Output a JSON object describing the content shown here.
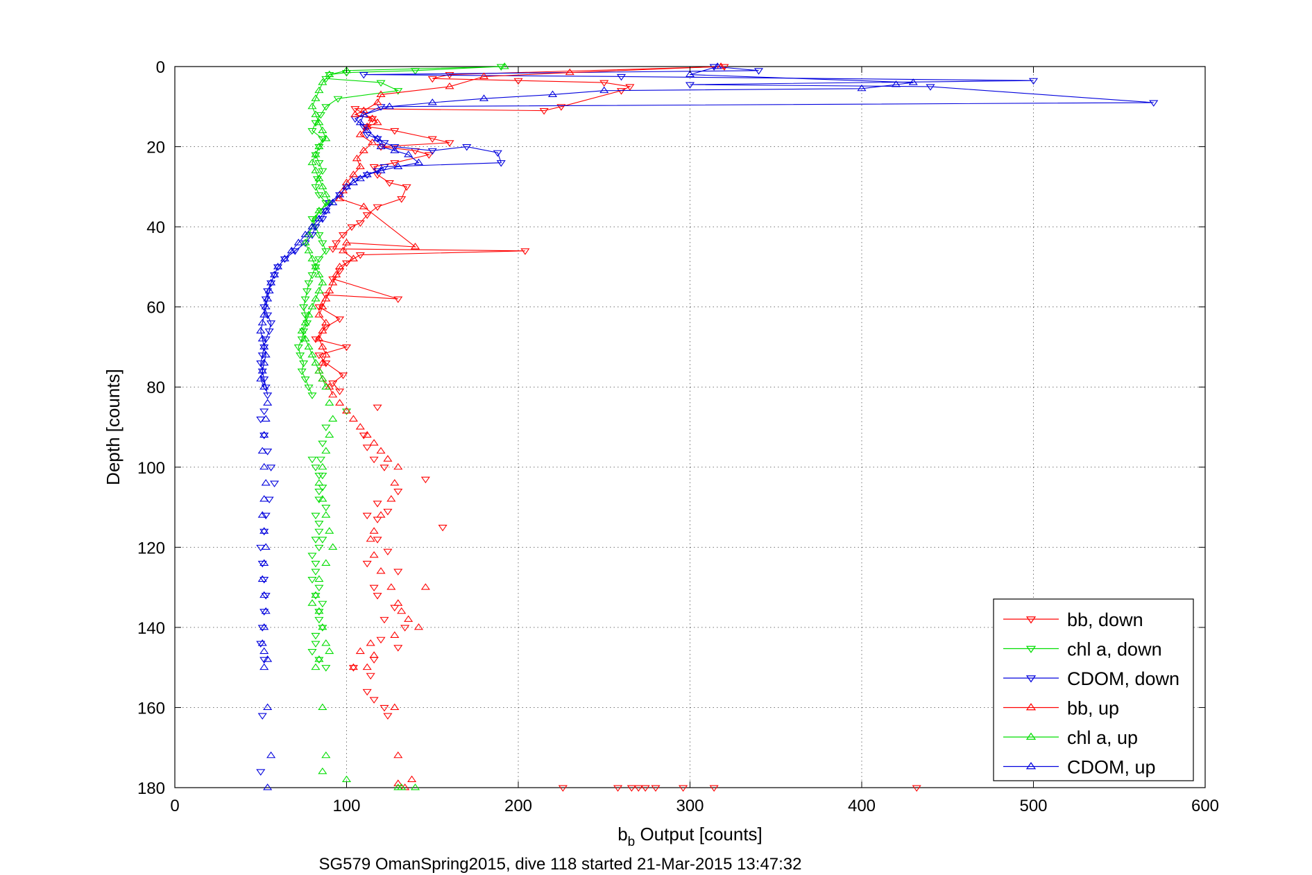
{
  "chart_data": {
    "type": "line",
    "xlabel_main": "b",
    "xlabel_sub": "b",
    "xlabel_rest": " Output [counts]",
    "ylabel": "Depth [counts]",
    "caption": "SG579 OmanSpring2015, dive 118 started 21-Mar-2015 13:47:32",
    "xlim": [
      0,
      600
    ],
    "ylim": [
      0,
      180
    ],
    "y_reversed": true,
    "grid": true,
    "legend_position": "bottom-right",
    "xticks": [
      "0",
      "100",
      "200",
      "300",
      "400",
      "500",
      "600"
    ],
    "yticks": [
      "0",
      "20",
      "40",
      "60",
      "80",
      "100",
      "120",
      "140",
      "160",
      "180"
    ],
    "series": [
      {
        "name": "bb, down",
        "color": "#ff0000",
        "marker": "triangle-down",
        "connected": true,
        "x": [
          320,
          160,
          150,
          200,
          250,
          265,
          260,
          225,
          215,
          105,
          115,
          112,
          128,
          150,
          160,
          120,
          140,
          148,
          128,
          116,
          118,
          125,
          135,
          132,
          118,
          112,
          108,
          103,
          98,
          94,
          92,
          204,
          108,
          100,
          96,
          92,
          130,
          88,
          84,
          96,
          88,
          82,
          100,
          84,
          88,
          98,
          92,
          96,
          118,
          110,
          112,
          116,
          122,
          146,
          130,
          118,
          124,
          118,
          112,
          156,
          118,
          124,
          112,
          130,
          116,
          118,
          128,
          122,
          134,
          120,
          130,
          116,
          104,
          114,
          112,
          116,
          122,
          124,
          226,
          258,
          266,
          270,
          274,
          280,
          296,
          314,
          432
        ],
        "y": [
          0,
          2,
          3,
          3.5,
          4,
          5,
          6,
          10,
          11,
          10.5,
          13,
          15,
          16,
          18,
          19,
          20,
          21,
          22,
          24,
          25,
          27,
          29,
          30,
          33,
          35,
          37,
          39,
          40,
          42,
          44,
          45.5,
          46,
          47,
          49,
          51,
          53,
          58,
          57,
          60,
          63,
          65,
          68,
          70,
          72,
          74,
          77,
          79,
          81,
          85,
          92,
          95,
          98,
          100,
          103,
          106,
          109,
          111,
          113,
          112,
          115,
          118,
          121,
          124,
          126,
          130,
          132,
          135,
          138,
          140,
          143,
          145,
          148,
          150,
          152,
          156,
          158,
          160,
          162,
          180,
          180,
          180,
          180,
          180,
          180,
          180,
          180,
          180
        ]
      },
      {
        "name": "chl a, down",
        "color": "#00dd00",
        "marker": "triangle-down",
        "connected": true,
        "x": [
          190,
          140,
          100,
          90,
          88,
          120,
          130,
          95,
          88,
          85,
          82,
          80,
          86,
          84,
          82,
          84,
          86,
          83,
          82,
          84,
          88,
          85,
          80,
          82,
          84,
          86,
          88,
          84,
          82,
          80,
          78,
          77,
          76,
          75,
          76,
          77,
          75,
          74,
          72,
          73,
          75,
          74,
          76,
          78,
          80,
          100,
          88,
          86,
          85,
          84,
          86,
          84,
          82,
          84,
          86,
          84,
          82,
          80,
          82,
          84,
          86,
          82,
          84,
          88,
          80,
          82,
          84,
          86,
          84,
          82,
          80,
          82,
          84,
          88,
          84,
          86,
          82,
          80
        ],
        "y": [
          0,
          1,
          1.5,
          2,
          3,
          4,
          6,
          8,
          10,
          12,
          14,
          16,
          18,
          20,
          22,
          24,
          26,
          28,
          30,
          32,
          34,
          36,
          38,
          40,
          42,
          44,
          46,
          48,
          50,
          52,
          54,
          56,
          58,
          60,
          62,
          64,
          66,
          68,
          70,
          72,
          74,
          76,
          78,
          80,
          82,
          86,
          90,
          94,
          98,
          102,
          105,
          108,
          112,
          116,
          118,
          120,
          124,
          128,
          132,
          136,
          140,
          144,
          148,
          150,
          146,
          142,
          138,
          134,
          130,
          126,
          122,
          118,
          114,
          110,
          106,
          102,
          100,
          98
        ]
      },
      {
        "name": "CDOM, down",
        "color": "#0000dd",
        "marker": "triangle-down",
        "connected": true,
        "x": [
          314,
          340,
          110,
          260,
          500,
          300,
          440,
          570,
          120,
          105,
          110,
          112,
          118,
          122,
          128,
          150,
          170,
          188,
          190,
          122,
          118,
          112,
          105,
          100,
          96,
          90,
          88,
          86,
          82,
          80,
          76,
          70,
          64,
          60,
          58,
          56,
          54,
          53,
          52,
          54,
          56,
          55,
          53,
          52,
          51,
          50,
          51,
          52,
          53,
          54,
          52,
          50,
          52,
          54,
          56,
          58,
          55,
          53,
          52,
          50,
          51,
          52,
          53,
          52,
          51,
          50,
          52,
          51,
          50
        ],
        "y": [
          0,
          1,
          2,
          2.5,
          3.5,
          4.5,
          5,
          9,
          10,
          13,
          15,
          17,
          18,
          19,
          20,
          21,
          20,
          21.5,
          24,
          25,
          26,
          27,
          28,
          30,
          32,
          34,
          36,
          38,
          40,
          42,
          44,
          46,
          48,
          50,
          52,
          54,
          56,
          58,
          60,
          62,
          64,
          66,
          68,
          70,
          72,
          74,
          76,
          78,
          80,
          82,
          86,
          88,
          92,
          96,
          100,
          104,
          108,
          112,
          116,
          120,
          124,
          128,
          132,
          136,
          140,
          144,
          148,
          162,
          176
        ]
      },
      {
        "name": "bb, up",
        "color": "#ff0000",
        "marker": "triangle-up",
        "connected": true,
        "x": [
          318,
          230,
          180,
          160,
          120,
          118,
          110,
          105,
          115,
          118,
          112,
          108,
          115,
          110,
          106,
          108,
          104,
          100,
          98,
          96,
          110,
          140,
          100,
          98,
          104,
          96,
          94,
          92,
          90,
          88,
          86,
          84,
          88,
          86,
          84,
          86,
          88,
          86,
          84,
          86,
          90,
          92,
          96,
          100,
          104,
          108,
          112,
          116,
          120,
          124,
          130,
          128,
          126,
          120,
          116,
          114,
          116,
          120,
          126,
          130,
          132,
          136,
          146,
          142,
          128,
          114,
          108,
          104,
          112,
          116,
          128,
          130,
          138,
          134,
          130
        ],
        "y": [
          0,
          1.5,
          2.5,
          5,
          7,
          9,
          11,
          12,
          13,
          14,
          15,
          17,
          19,
          21,
          23,
          25,
          27,
          29,
          31,
          33,
          35,
          45,
          44,
          46,
          48,
          50,
          52,
          54,
          56,
          58,
          60,
          62,
          64,
          66,
          68,
          70,
          72,
          74,
          76,
          78,
          80,
          82,
          84,
          86,
          88,
          90,
          92,
          94,
          96,
          98,
          100,
          104,
          108,
          112,
          116,
          118,
          122,
          126,
          130,
          134,
          136,
          138,
          130,
          140,
          142,
          144,
          146,
          150,
          150,
          147,
          160,
          172,
          178,
          180,
          179
        ]
      },
      {
        "name": "chl a, up",
        "color": "#00dd00",
        "marker": "triangle-up",
        "connected": true,
        "x": [
          192,
          100,
          90,
          86,
          84,
          82,
          80,
          82,
          84,
          86,
          88,
          84,
          82,
          80,
          82,
          84,
          86,
          88,
          90,
          84,
          82,
          80,
          78,
          76,
          78,
          80,
          82,
          84,
          86,
          84,
          82,
          80,
          78,
          76,
          74,
          76,
          78,
          80,
          82,
          84,
          86,
          88,
          90,
          92,
          90,
          88,
          86,
          84,
          86,
          88,
          90,
          92,
          88,
          84,
          82,
          80,
          84,
          86,
          88,
          90,
          84,
          82,
          86,
          88,
          86,
          100,
          130,
          132,
          140
        ],
        "y": [
          0,
          1,
          2,
          4,
          6,
          8,
          10,
          12,
          14,
          16,
          18,
          20,
          22,
          24,
          26,
          28,
          30,
          32,
          34,
          36,
          38,
          40,
          42,
          44,
          46,
          48,
          50,
          52,
          54,
          56,
          58,
          60,
          62,
          64,
          66,
          68,
          70,
          72,
          74,
          76,
          78,
          80,
          84,
          88,
          92,
          96,
          100,
          104,
          108,
          112,
          116,
          120,
          124,
          128,
          132,
          134,
          136,
          140,
          144,
          146,
          148,
          150,
          160,
          172,
          176,
          178,
          180,
          180,
          180
        ]
      },
      {
        "name": "CDOM, up",
        "color": "#0000dd",
        "marker": "triangle-up",
        "connected": true,
        "x": [
          316,
          300,
          430,
          420,
          400,
          250,
          220,
          180,
          150,
          125,
          110,
          108,
          112,
          118,
          120,
          128,
          136,
          142,
          130,
          120,
          112,
          108,
          104,
          100,
          96,
          92,
          88,
          84,
          80,
          76,
          72,
          68,
          64,
          60,
          58,
          56,
          55,
          54,
          53,
          52,
          51,
          50,
          51,
          52,
          53,
          52,
          51,
          50,
          52,
          54,
          53,
          52,
          51,
          52,
          53,
          52,
          51,
          52,
          53,
          52,
          51,
          52,
          53,
          52,
          51,
          52,
          54,
          52,
          54,
          56,
          54
        ],
        "y": [
          0,
          2,
          4,
          4.5,
          5.5,
          6,
          7,
          8,
          9,
          10,
          12,
          14,
          16,
          18,
          20,
          21,
          22,
          24,
          25,
          26,
          27,
          28,
          29,
          30,
          32,
          34,
          36,
          38,
          40,
          42,
          44,
          46,
          48,
          50,
          52,
          54,
          56,
          58,
          60,
          62,
          64,
          66,
          68,
          70,
          72,
          74,
          76,
          78,
          80,
          84,
          88,
          92,
          96,
          100,
          104,
          108,
          112,
          116,
          120,
          124,
          128,
          132,
          136,
          140,
          144,
          146,
          148,
          150,
          160,
          172,
          180
        ]
      }
    ]
  }
}
